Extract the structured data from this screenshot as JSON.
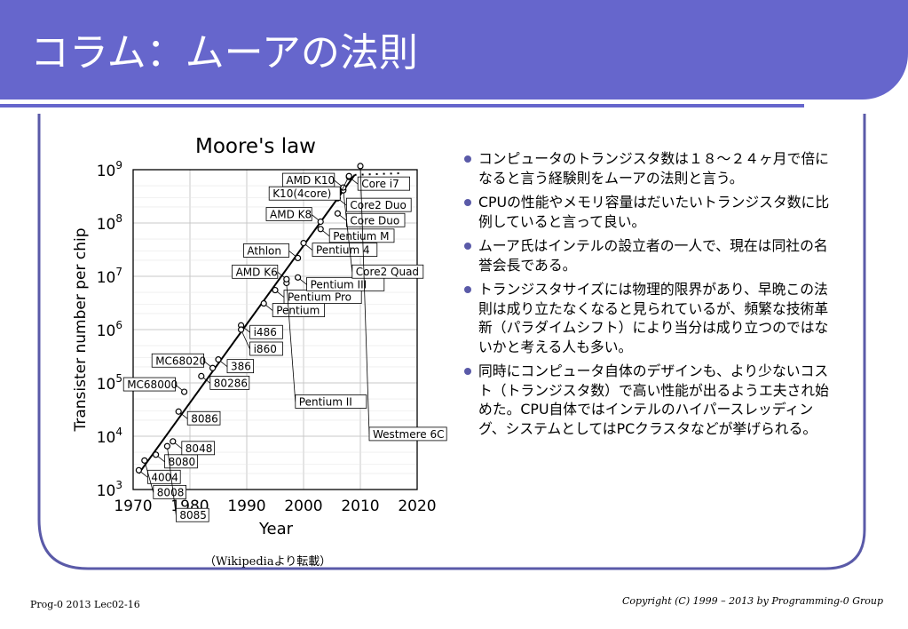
{
  "slide": {
    "title": "コラム：ムーアの法則",
    "caption": "（Wikipediaより転載）",
    "footer_left": "Prog-0 2013 Lec02-16",
    "footer_right": "Copyright (C) 1999 – 2013 by Programming-0 Group"
  },
  "colors": {
    "accent": "#6666cc",
    "frame": "#5a5aa8",
    "bullet": "#5a5aa8"
  },
  "bullets": [
    "コンピュータのトランジスタ数は１８〜２４ヶ月で倍になると言う経験則をムーアの法則と言う。",
    "CPUの性能やメモリ容量はだいたいトランジスタ数に比例していると言って良い。",
    "ムーア氏はインテルの設立者の一人で、現在は同社の名誉会長である。",
    "トランジスタサイズには物理的限界があり、早晩この法則は成り立たなくなると見られているが、頻繁な技術革新（パラダイムシフト）により当分は成り立つのではないかと考える人も多い。",
    "同時にコンピュータ自体のデザインも、より少ないコスト（トランジスタ数）で高い性能が出るようエ夫され始めた。CPU自体ではインテルのハイパースレッディング、システムとしてはPCクラスタなどが挙げられる。"
  ],
  "chart_data": {
    "type": "scatter",
    "title": "Moore's law",
    "xlabel": "Year",
    "ylabel": "Transister number per chip",
    "x_range": [
      1970,
      2020
    ],
    "y_range_log10": [
      3,
      9
    ],
    "x_ticks": [
      "1970",
      "1980",
      "1990",
      "2000",
      "2010",
      "2020"
    ],
    "y_tick_bases": [
      "10",
      "10",
      "10",
      "10",
      "10",
      "10",
      "10"
    ],
    "y_tick_exps": [
      "3",
      "4",
      "5",
      "6",
      "7",
      "8",
      "9"
    ],
    "grid": true,
    "points": [
      {
        "label": "4004",
        "year": 1971,
        "count": 2300,
        "label_side": "right"
      },
      {
        "label": "8008",
        "year": 1972,
        "count": 3500,
        "label_side": "right"
      },
      {
        "label": "8080",
        "year": 1974,
        "count": 4500,
        "label_side": "right"
      },
      {
        "label": "8085",
        "year": 1976,
        "count": 6500,
        "label_side": "right"
      },
      {
        "label": "8048",
        "year": 1977,
        "count": 8000,
        "label_side": "right"
      },
      {
        "label": "8086",
        "year": 1978,
        "count": 29000,
        "label_side": "right"
      },
      {
        "label": "MC68000",
        "year": 1979,
        "count": 68000,
        "label_side": "left"
      },
      {
        "label": "80286",
        "year": 1982,
        "count": 134000,
        "label_side": "right"
      },
      {
        "label": "386",
        "year": 1985,
        "count": 275000,
        "label_side": "right"
      },
      {
        "label": "MC68020",
        "year": 1984,
        "count": 190000,
        "label_side": "left"
      },
      {
        "label": "i486",
        "year": 1989,
        "count": 1200000,
        "label_side": "right"
      },
      {
        "label": "i860",
        "year": 1989,
        "count": 1000000,
        "label_side": "right"
      },
      {
        "label": "Pentium",
        "year": 1993,
        "count": 3100000,
        "label_side": "right"
      },
      {
        "label": "Pentium Pro",
        "year": 1995,
        "count": 5500000,
        "label_side": "right"
      },
      {
        "label": "Pentium II",
        "year": 1997,
        "count": 7500000,
        "label_side": "right"
      },
      {
        "label": "Pentium III",
        "year": 1999,
        "count": 9500000,
        "label_side": "right"
      },
      {
        "label": "AMD K6",
        "year": 1997,
        "count": 8800000,
        "label_side": "left"
      },
      {
        "label": "Athlon",
        "year": 1999,
        "count": 22000000,
        "label_side": "left"
      },
      {
        "label": "Pentium 4",
        "year": 2000,
        "count": 42000000,
        "label_side": "right"
      },
      {
        "label": "Pentium M",
        "year": 2003,
        "count": 77000000,
        "label_side": "right"
      },
      {
        "label": "Core Duo",
        "year": 2006,
        "count": 151000000,
        "label_side": "right"
      },
      {
        "label": "Core2 Duo",
        "year": 2006,
        "count": 291000000,
        "label_side": "right"
      },
      {
        "label": "Core2 Quad",
        "year": 2007,
        "count": 410000000,
        "label_side": "right"
      },
      {
        "label": "Core i7",
        "year": 2008,
        "count": 731000000,
        "label_side": "right"
      },
      {
        "label": "AMD K8",
        "year": 2003,
        "count": 105900000,
        "label_side": "left"
      },
      {
        "label": "AMD K10",
        "year": 2007,
        "count": 463000000,
        "label_side": "left"
      },
      {
        "label": "K10(4core)",
        "year": 2008,
        "count": 758000000,
        "label_side": "left"
      },
      {
        "label": "Westmere 6C",
        "year": 2010,
        "count": 1170000000,
        "label_side": "right"
      }
    ],
    "trend_line": {
      "x": [
        1971,
        2009
      ],
      "count": [
        2000,
        800000000
      ]
    }
  }
}
